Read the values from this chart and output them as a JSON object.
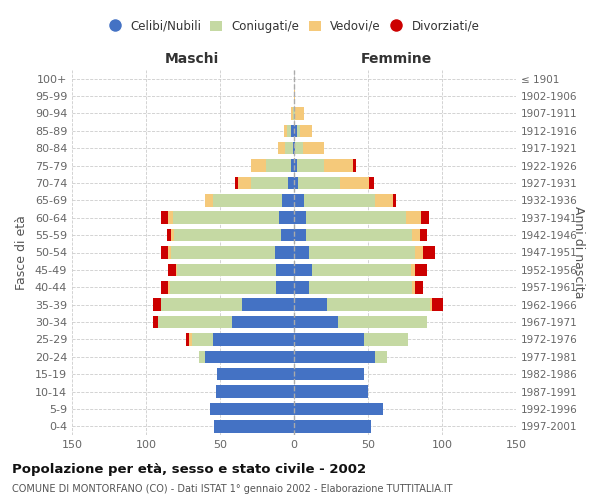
{
  "age_groups": [
    "100+",
    "95-99",
    "90-94",
    "85-89",
    "80-84",
    "75-79",
    "70-74",
    "65-69",
    "60-64",
    "55-59",
    "50-54",
    "45-49",
    "40-44",
    "35-39",
    "30-34",
    "25-29",
    "20-24",
    "15-19",
    "10-14",
    "5-9",
    "0-4"
  ],
  "birth_years": [
    "≤ 1901",
    "1902-1906",
    "1907-1911",
    "1912-1916",
    "1917-1921",
    "1922-1926",
    "1927-1931",
    "1932-1936",
    "1937-1941",
    "1942-1946",
    "1947-1951",
    "1952-1956",
    "1957-1961",
    "1962-1966",
    "1967-1971",
    "1972-1976",
    "1977-1981",
    "1982-1986",
    "1987-1991",
    "1992-1996",
    "1997-2001"
  ],
  "males": {
    "celibi": [
      0,
      0,
      0,
      2,
      1,
      2,
      4,
      8,
      10,
      9,
      13,
      12,
      12,
      35,
      42,
      55,
      60,
      52,
      53,
      57,
      54
    ],
    "coniugati": [
      0,
      0,
      1,
      3,
      5,
      17,
      25,
      47,
      72,
      72,
      70,
      67,
      72,
      55,
      50,
      14,
      4,
      0,
      0,
      0,
      0
    ],
    "vedovi": [
      0,
      0,
      1,
      2,
      5,
      10,
      9,
      5,
      3,
      2,
      2,
      1,
      1,
      0,
      0,
      2,
      0,
      0,
      0,
      0,
      0
    ],
    "divorziati": [
      0,
      0,
      0,
      0,
      0,
      0,
      2,
      0,
      5,
      3,
      5,
      5,
      5,
      5,
      3,
      2,
      0,
      0,
      0,
      0,
      0
    ]
  },
  "females": {
    "nubili": [
      0,
      0,
      0,
      2,
      1,
      2,
      3,
      7,
      8,
      8,
      10,
      12,
      10,
      22,
      30,
      47,
      55,
      47,
      50,
      60,
      52
    ],
    "coniugate": [
      0,
      0,
      1,
      2,
      5,
      18,
      28,
      48,
      68,
      72,
      72,
      67,
      70,
      70,
      60,
      30,
      8,
      0,
      0,
      0,
      0
    ],
    "vedove": [
      0,
      1,
      6,
      8,
      14,
      20,
      20,
      12,
      10,
      5,
      5,
      3,
      2,
      1,
      0,
      0,
      0,
      0,
      0,
      0,
      0
    ],
    "divorziate": [
      0,
      0,
      0,
      0,
      0,
      2,
      3,
      2,
      5,
      5,
      8,
      8,
      5,
      8,
      0,
      0,
      0,
      0,
      0,
      0,
      0
    ]
  },
  "colors": {
    "celibi": "#4472C4",
    "coniugati": "#C5D9A3",
    "vedovi": "#F5C97A",
    "divorziati": "#CC0000"
  },
  "title": "Popolazione per età, sesso e stato civile - 2002",
  "subtitle": "COMUNE DI MONTORFANO (CO) - Dati ISTAT 1° gennaio 2002 - Elaborazione TUTTITALIA.IT",
  "label_maschi": "Maschi",
  "label_femmine": "Femmine",
  "ylabel_left": "Fasce di età",
  "ylabel_right": "Anni di nascita",
  "xlim": 150,
  "legend_labels": [
    "Celibi/Nubili",
    "Coniugati/e",
    "Vedovi/e",
    "Divorziati/e"
  ],
  "bg_color": "#ffffff",
  "grid_color": "#cccccc"
}
